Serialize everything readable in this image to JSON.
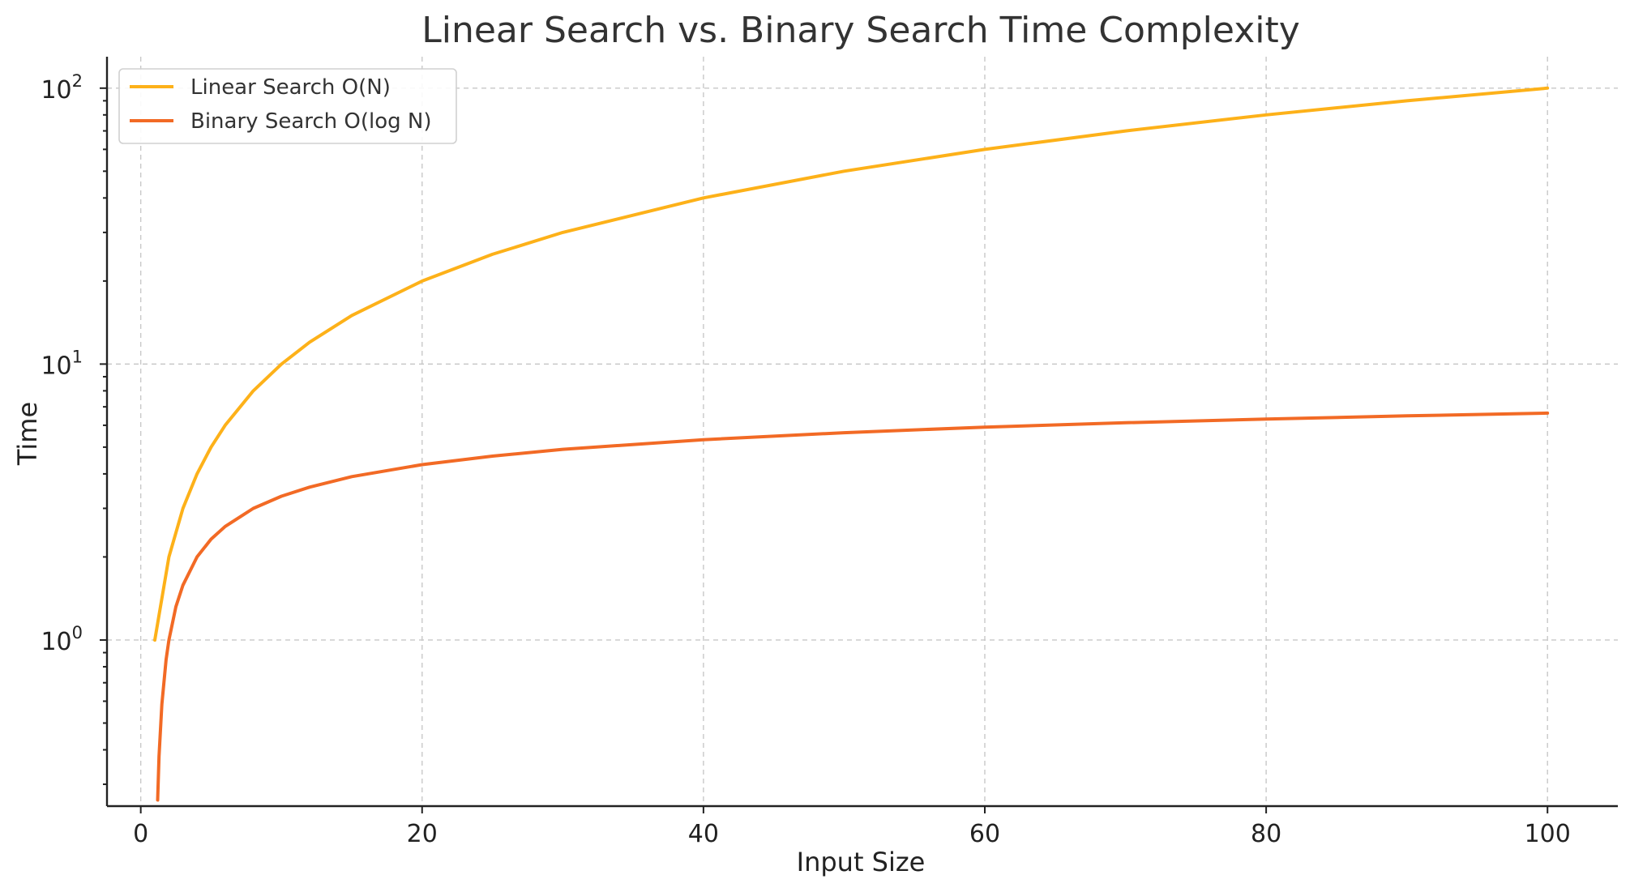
{
  "chart_data": {
    "type": "line",
    "title": "Linear Search vs. Binary Search Time Complexity",
    "xlabel": "Input Size",
    "ylabel": "Time",
    "xlim": [
      -2.4,
      105.0
    ],
    "ylim": [
      0.25,
      130
    ],
    "yscale": "log",
    "grid": true,
    "legend_position": "upper-left",
    "x_ticks": [
      0,
      20,
      40,
      60,
      80,
      100
    ],
    "x_tick_labels": [
      "0",
      "20",
      "40",
      "60",
      "80",
      "100"
    ],
    "y_ticks": [
      1,
      10,
      100
    ],
    "y_tick_labels": [
      {
        "base": "10",
        "exp": "0"
      },
      {
        "base": "10",
        "exp": "1"
      },
      {
        "base": "10",
        "exp": "2"
      }
    ],
    "series": [
      {
        "name": "Linear Search O(N)",
        "color": "#FDB119",
        "x": [
          1,
          2,
          3,
          4,
          5,
          6,
          8,
          10,
          12,
          15,
          20,
          25,
          30,
          40,
          50,
          60,
          70,
          80,
          90,
          100
        ],
        "y": [
          1,
          2,
          3,
          4,
          5,
          6,
          8,
          10,
          12,
          15,
          20,
          25,
          30,
          40,
          50,
          60,
          70,
          80,
          90,
          100
        ]
      },
      {
        "name": "Binary Search O(log N)",
        "color": "#F26A25",
        "x": [
          1.2,
          1.3,
          1.5,
          1.8,
          2,
          2.5,
          3,
          4,
          5,
          6,
          8,
          10,
          12,
          15,
          20,
          25,
          30,
          40,
          50,
          60,
          70,
          80,
          90,
          100
        ],
        "y": [
          0.263,
          0.379,
          0.585,
          0.848,
          1.0,
          1.32,
          1.58,
          2.0,
          2.32,
          2.58,
          3.0,
          3.32,
          3.58,
          3.91,
          4.32,
          4.64,
          4.91,
          5.32,
          5.64,
          5.91,
          6.13,
          6.32,
          6.49,
          6.64
        ]
      }
    ]
  }
}
